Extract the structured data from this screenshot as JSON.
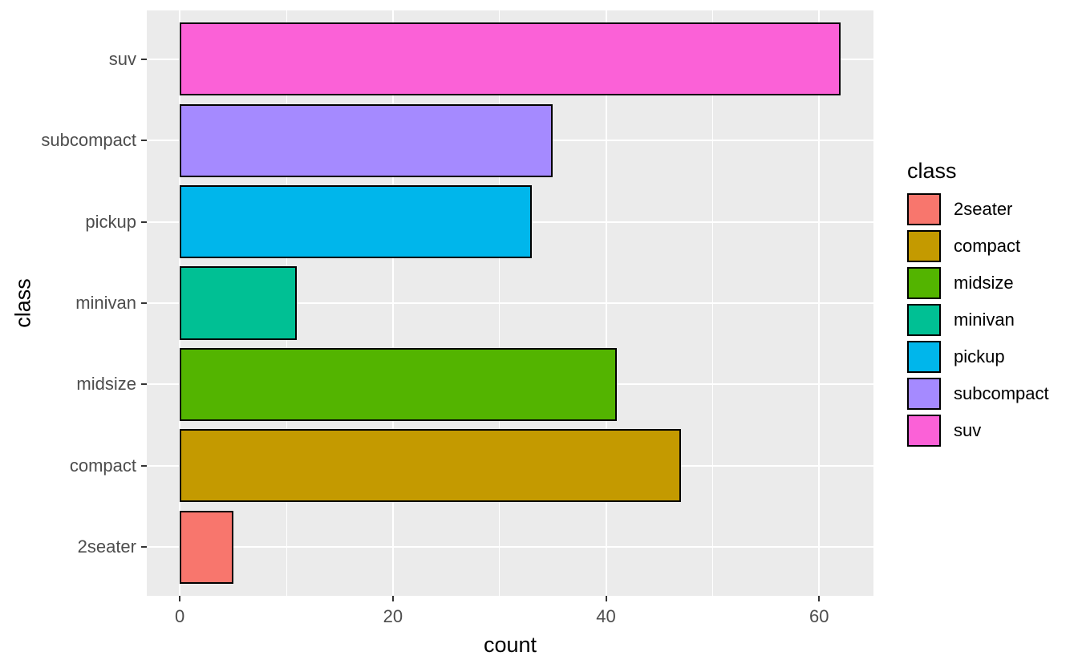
{
  "figure": {
    "background": "#FFFFFF",
    "panel_background": "#EBEBEB",
    "grid_color": "#FFFFFF",
    "tick_mark_color": "#333333",
    "tick_label_color": "#4D4D4D",
    "axis_title_color": "#000000"
  },
  "chart_data": {
    "type": "bar",
    "orientation": "horizontal",
    "title": "",
    "xlabel": "count",
    "ylabel": "class",
    "categories": [
      "2seater",
      "compact",
      "midsize",
      "minivan",
      "pickup",
      "subcompact",
      "suv"
    ],
    "values": [
      5,
      47,
      41,
      11,
      33,
      35,
      62
    ],
    "colors": [
      "#F8766D",
      "#C49A00",
      "#53B400",
      "#00C094",
      "#00B6EB",
      "#A58AFF",
      "#FB61D7"
    ],
    "bar_border_color": "#000000",
    "bar_width_fraction": 0.9,
    "y_order_top_to_bottom": [
      "suv",
      "subcompact",
      "pickup",
      "minivan",
      "midsize",
      "compact",
      "2seater"
    ],
    "x_ticks": [
      0,
      20,
      40,
      60
    ],
    "x_minor_ticks": [
      10,
      30,
      50
    ],
    "xlim": [
      -3.1,
      65.1
    ],
    "grid": "major-and-minor-x-white, major-y-white",
    "legend": {
      "title": "class",
      "position": "right",
      "entries": [
        {
          "label": "2seater",
          "color": "#F8766D"
        },
        {
          "label": "compact",
          "color": "#C49A00"
        },
        {
          "label": "midsize",
          "color": "#53B400"
        },
        {
          "label": "minivan",
          "color": "#00C094"
        },
        {
          "label": "pickup",
          "color": "#00B6EB"
        },
        {
          "label": "subcompact",
          "color": "#A58AFF"
        },
        {
          "label": "suv",
          "color": "#FB61D7"
        }
      ]
    }
  }
}
